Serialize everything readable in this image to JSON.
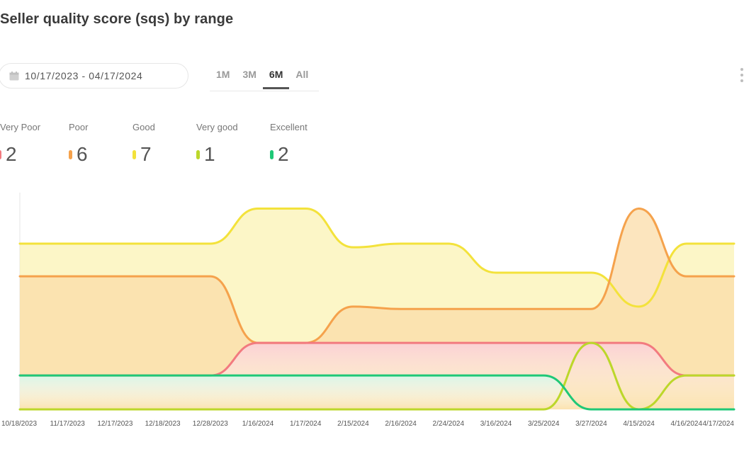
{
  "header": {
    "title": "Seller quality score (sqs) by range"
  },
  "filters": {
    "date_range": "10/17/2023 - 04/17/2024",
    "ranges": [
      {
        "label": "1M",
        "active": false
      },
      {
        "label": "3M",
        "active": false
      },
      {
        "label": "6M",
        "active": true
      },
      {
        "label": "All",
        "active": false
      }
    ]
  },
  "legend": [
    {
      "label": "Very Poor",
      "value": "2",
      "color": "#f27a7f"
    },
    {
      "label": "Poor",
      "value": "6",
      "color": "#f5a24c"
    },
    {
      "label": "Good",
      "value": "7",
      "color": "#f3e23b"
    },
    {
      "label": "Very good",
      "value": "1",
      "color": "#bcd72a"
    },
    {
      "label": "Excellent",
      "value": "2",
      "color": "#1fc877"
    }
  ],
  "chart_data": {
    "type": "area",
    "categories": [
      "10/18/2023",
      "11/17/2023",
      "12/17/2023",
      "12/18/2023",
      "12/28/2023",
      "1/16/2024",
      "1/17/2024",
      "2/15/2024",
      "2/16/2024",
      "2/24/2024",
      "3/16/2024",
      "3/25/2024",
      "3/27/2024",
      "4/15/2024",
      "4/16/2024",
      "4/17/2024"
    ],
    "series": [
      {
        "name": "Good",
        "color": "#f3e23b",
        "fill": "#fbf3b4",
        "values": [
          13.7,
          13.7,
          13.7,
          13.7,
          13.7,
          16.6,
          16.6,
          13.4,
          13.7,
          13.7,
          11.3,
          11.3,
          11.3,
          8.5,
          13.7,
          13.7
        ]
      },
      {
        "name": "Poor",
        "color": "#f5a24c",
        "fill": "#fbdca8",
        "values": [
          11.0,
          11.0,
          11.0,
          11.0,
          11.0,
          5.5,
          5.5,
          8.5,
          8.3,
          8.3,
          8.3,
          8.3,
          8.3,
          16.6,
          11.0,
          11.0
        ]
      },
      {
        "name": "Very Poor",
        "color": "#f27a7f",
        "fill": "#fcdfe1",
        "values": [
          2.8,
          2.8,
          2.8,
          2.8,
          2.8,
          5.5,
          5.5,
          5.5,
          5.5,
          5.5,
          5.5,
          5.5,
          5.5,
          5.5,
          2.8,
          2.8
        ]
      },
      {
        "name": "Very good",
        "color": "#bcd72a",
        "fill": "none",
        "values": [
          0,
          0,
          0,
          0,
          0,
          0,
          0,
          0,
          0,
          0,
          0,
          0,
          5.5,
          0,
          2.8,
          2.8
        ]
      },
      {
        "name": "Excellent",
        "color": "#1fc877",
        "fill": "#e6f9ee",
        "values": [
          2.8,
          2.8,
          2.8,
          2.8,
          2.8,
          2.8,
          2.8,
          2.8,
          2.8,
          2.8,
          2.8,
          2.8,
          0,
          0,
          0,
          0
        ]
      }
    ],
    "ylim": [
      0,
      17.8
    ],
    "grid": false,
    "legend_position": "top-left"
  }
}
